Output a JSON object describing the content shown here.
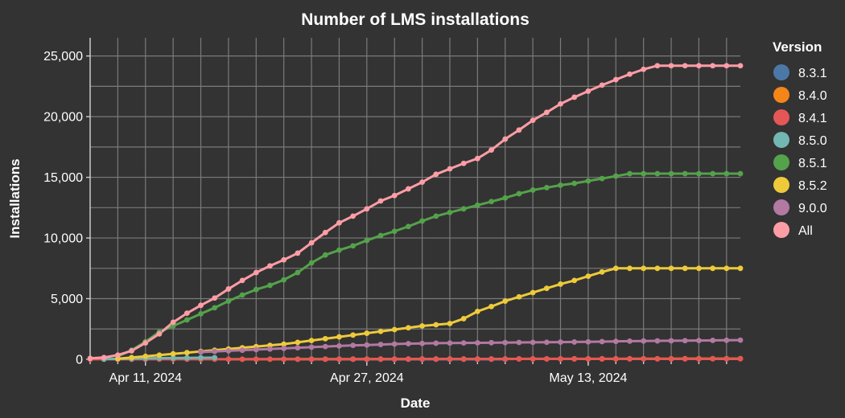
{
  "chart_data": {
    "type": "line",
    "title": "Number of LMS installations",
    "xlabel": "Date",
    "ylabel": "Installations",
    "x_start": "2024-04-07",
    "x_end": "2024-05-24",
    "ylim": [
      0,
      26500
    ],
    "x_tick_labels": [
      "Apr 11, 2024",
      "Apr 27, 2024",
      "May 13, 2024"
    ],
    "x_tick_dates": [
      "2024-04-11",
      "2024-04-27",
      "2024-05-13"
    ],
    "y_ticks": [
      0,
      5000,
      10000,
      15000,
      20000,
      25000
    ],
    "y_tick_labels": [
      "0",
      "5,000",
      "10,000",
      "15,000",
      "20,000",
      "25,000"
    ],
    "grid": true,
    "legend_title": "Version",
    "legend_position": "right",
    "series": [
      {
        "name": "8.3.1",
        "color": "#4c78a8",
        "x": [
          "2024-04-22",
          "2024-04-23",
          "2024-04-24",
          "2024-04-25",
          "2024-04-26",
          "2024-04-27",
          "2024-04-28",
          "2024-04-29",
          "2024-04-30",
          "2024-05-01",
          "2024-05-02",
          "2024-05-03",
          "2024-05-04",
          "2024-05-05",
          "2024-05-06",
          "2024-05-07"
        ],
        "y": [
          0,
          0,
          0,
          0,
          0,
          0,
          0,
          0,
          0,
          0,
          0,
          0,
          0,
          0,
          0,
          0
        ]
      },
      {
        "name": "8.4.0",
        "color": "#f58518",
        "x": [
          "2024-04-17",
          "2024-04-18",
          "2024-04-19",
          "2024-04-20",
          "2024-04-21",
          "2024-04-22",
          "2024-04-23",
          "2024-04-24",
          "2024-04-25",
          "2024-04-26",
          "2024-04-27",
          "2024-04-28",
          "2024-04-29",
          "2024-04-30",
          "2024-05-01",
          "2024-05-02",
          "2024-05-03",
          "2024-05-04",
          "2024-05-05",
          "2024-05-06",
          "2024-05-07",
          "2024-05-08",
          "2024-05-09",
          "2024-05-10",
          "2024-05-11",
          "2024-05-12",
          "2024-05-13",
          "2024-05-14",
          "2024-05-15",
          "2024-05-16",
          "2024-05-17",
          "2024-05-18",
          "2024-05-19",
          "2024-05-20",
          "2024-05-21",
          "2024-05-22",
          "2024-05-23",
          "2024-05-24"
        ],
        "y": [
          10,
          10,
          10,
          10,
          15,
          15,
          20,
          20,
          20,
          20,
          25,
          25,
          25,
          25,
          30,
          30,
          30,
          30,
          35,
          35,
          35,
          40,
          40,
          40,
          40,
          45,
          45,
          45,
          45,
          50,
          50,
          50,
          50,
          55,
          55,
          55,
          55,
          60
        ]
      },
      {
        "name": "8.4.1",
        "color": "#e45756",
        "x": [
          "2024-04-07",
          "2024-04-08",
          "2024-04-09",
          "2024-04-10",
          "2024-04-11",
          "2024-04-12",
          "2024-04-13",
          "2024-04-14",
          "2024-04-15",
          "2024-04-16",
          "2024-04-17",
          "2024-04-18",
          "2024-04-19",
          "2024-04-20",
          "2024-04-21",
          "2024-04-22",
          "2024-04-23",
          "2024-04-24",
          "2024-04-25",
          "2024-04-26",
          "2024-04-27",
          "2024-04-28",
          "2024-04-29",
          "2024-04-30",
          "2024-05-01",
          "2024-05-02",
          "2024-05-03",
          "2024-05-04",
          "2024-05-05",
          "2024-05-06",
          "2024-05-07",
          "2024-05-08",
          "2024-05-09",
          "2024-05-10",
          "2024-05-11",
          "2024-05-12",
          "2024-05-13",
          "2024-05-14",
          "2024-05-15",
          "2024-05-16",
          "2024-05-17",
          "2024-05-18",
          "2024-05-19",
          "2024-05-20",
          "2024-05-21",
          "2024-05-22",
          "2024-05-23",
          "2024-05-24"
        ],
        "y": [
          5,
          5,
          5,
          5,
          5,
          10,
          10,
          10,
          10,
          10,
          10,
          10,
          15,
          15,
          15,
          15,
          15,
          15,
          20,
          20,
          20,
          20,
          20,
          20,
          25,
          25,
          25,
          25,
          25,
          25,
          25,
          30,
          30,
          30,
          30,
          30,
          30,
          30,
          35,
          35,
          35,
          35,
          35,
          35,
          35,
          40,
          40,
          40
        ]
      },
      {
        "name": "8.5.0",
        "color": "#72b7b2",
        "x": [
          "2024-04-08",
          "2024-04-09",
          "2024-04-10",
          "2024-04-11",
          "2024-04-12",
          "2024-04-13",
          "2024-04-14",
          "2024-04-15",
          "2024-04-16"
        ],
        "y": [
          20,
          40,
          60,
          80,
          100,
          110,
          120,
          130,
          140
        ]
      },
      {
        "name": "8.5.1",
        "color": "#54a24b",
        "x": [
          "2024-04-09",
          "2024-04-10",
          "2024-04-11",
          "2024-04-12",
          "2024-04-13",
          "2024-04-14",
          "2024-04-15",
          "2024-04-16",
          "2024-04-17",
          "2024-04-18",
          "2024-04-19",
          "2024-04-20",
          "2024-04-21",
          "2024-04-22",
          "2024-04-23",
          "2024-04-24",
          "2024-04-25",
          "2024-04-26",
          "2024-04-27",
          "2024-04-28",
          "2024-04-29",
          "2024-04-30",
          "2024-05-01",
          "2024-05-02",
          "2024-05-03",
          "2024-05-04",
          "2024-05-05",
          "2024-05-06",
          "2024-05-07",
          "2024-05-08",
          "2024-05-09",
          "2024-05-10",
          "2024-05-11",
          "2024-05-12",
          "2024-05-13",
          "2024-05-14",
          "2024-05-15",
          "2024-05-16",
          "2024-05-17",
          "2024-05-18",
          "2024-05-19",
          "2024-05-20",
          "2024-05-21",
          "2024-05-22",
          "2024-05-23",
          "2024-05-24"
        ],
        "y": [
          250,
          750,
          1450,
          2250,
          2750,
          3250,
          3750,
          4250,
          4800,
          5300,
          5750,
          6100,
          6550,
          7150,
          7950,
          8600,
          9000,
          9350,
          9800,
          10200,
          10550,
          10950,
          11400,
          11800,
          12100,
          12400,
          12700,
          13000,
          13300,
          13650,
          13950,
          14150,
          14350,
          14500,
          14700,
          14900,
          15100,
          15300,
          15300,
          15300,
          15300,
          15300,
          15300,
          15300,
          15300,
          15300
        ]
      },
      {
        "name": "8.5.2",
        "color": "#eeca3b",
        "x": [
          "2024-04-09",
          "2024-04-10",
          "2024-04-11",
          "2024-04-12",
          "2024-04-13",
          "2024-04-14",
          "2024-04-15",
          "2024-04-16",
          "2024-04-17",
          "2024-04-18",
          "2024-04-19",
          "2024-04-20",
          "2024-04-21",
          "2024-04-22",
          "2024-04-23",
          "2024-04-24",
          "2024-04-25",
          "2024-04-26",
          "2024-04-27",
          "2024-04-28",
          "2024-04-29",
          "2024-04-30",
          "2024-05-01",
          "2024-05-02",
          "2024-05-03",
          "2024-05-04",
          "2024-05-05",
          "2024-05-06",
          "2024-05-07",
          "2024-05-08",
          "2024-05-09",
          "2024-05-10",
          "2024-05-11",
          "2024-05-12",
          "2024-05-13",
          "2024-05-14",
          "2024-05-15",
          "2024-05-16",
          "2024-05-17",
          "2024-05-18",
          "2024-05-19",
          "2024-05-20",
          "2024-05-21",
          "2024-05-22",
          "2024-05-23",
          "2024-05-24"
        ],
        "y": [
          50,
          150,
          250,
          350,
          450,
          550,
          650,
          750,
          850,
          950,
          1050,
          1150,
          1250,
          1400,
          1550,
          1700,
          1850,
          2000,
          2150,
          2300,
          2450,
          2600,
          2750,
          2850,
          2950,
          3350,
          3950,
          4350,
          4800,
          5150,
          5500,
          5850,
          6200,
          6500,
          6850,
          7200,
          7500,
          7500,
          7500,
          7500,
          7500,
          7500,
          7500,
          7500,
          7500,
          7500
        ]
      },
      {
        "name": "9.0.0",
        "color": "#b279a2",
        "x": [
          "2024-04-15",
          "2024-04-16",
          "2024-04-17",
          "2024-04-18",
          "2024-04-19",
          "2024-04-20",
          "2024-04-21",
          "2024-04-22",
          "2024-04-23",
          "2024-04-24",
          "2024-04-25",
          "2024-04-26",
          "2024-04-27",
          "2024-04-28",
          "2024-04-29",
          "2024-04-30",
          "2024-05-01",
          "2024-05-02",
          "2024-05-03",
          "2024-05-04",
          "2024-05-05",
          "2024-05-06",
          "2024-05-07",
          "2024-05-08",
          "2024-05-09",
          "2024-05-10",
          "2024-05-11",
          "2024-05-12",
          "2024-05-13",
          "2024-05-14",
          "2024-05-15",
          "2024-05-16",
          "2024-05-17",
          "2024-05-18",
          "2024-05-19",
          "2024-05-20",
          "2024-05-21",
          "2024-05-22",
          "2024-05-23",
          "2024-05-24"
        ],
        "y": [
          600,
          650,
          700,
          750,
          800,
          850,
          900,
          950,
          1000,
          1050,
          1100,
          1150,
          1180,
          1220,
          1260,
          1290,
          1310,
          1330,
          1340,
          1350,
          1360,
          1370,
          1380,
          1390,
          1400,
          1410,
          1420,
          1430,
          1440,
          1460,
          1480,
          1500,
          1510,
          1520,
          1530,
          1540,
          1550,
          1560,
          1570,
          1580
        ]
      },
      {
        "name": "All",
        "color": "#ff9da6",
        "x": [
          "2024-04-07",
          "2024-04-08",
          "2024-04-09",
          "2024-04-10",
          "2024-04-11",
          "2024-04-12",
          "2024-04-13",
          "2024-04-14",
          "2024-04-15",
          "2024-04-16",
          "2024-04-17",
          "2024-04-18",
          "2024-04-19",
          "2024-04-20",
          "2024-04-21",
          "2024-04-22",
          "2024-04-23",
          "2024-04-24",
          "2024-04-25",
          "2024-04-26",
          "2024-04-27",
          "2024-04-28",
          "2024-04-29",
          "2024-04-30",
          "2024-05-01",
          "2024-05-02",
          "2024-05-03",
          "2024-05-04",
          "2024-05-05",
          "2024-05-06",
          "2024-05-07",
          "2024-05-08",
          "2024-05-09",
          "2024-05-10",
          "2024-05-11",
          "2024-05-12",
          "2024-05-13",
          "2024-05-14",
          "2024-05-15",
          "2024-05-16",
          "2024-05-17",
          "2024-05-18",
          "2024-05-19",
          "2024-05-20",
          "2024-05-21",
          "2024-05-22",
          "2024-05-23",
          "2024-05-24"
        ],
        "y": [
          80,
          150,
          350,
          700,
          1350,
          2100,
          3050,
          3800,
          4450,
          5050,
          5800,
          6500,
          7150,
          7700,
          8200,
          8750,
          9600,
          10450,
          11250,
          11800,
          12400,
          13050,
          13500,
          14050,
          14600,
          15250,
          15700,
          16150,
          16550,
          17250,
          18150,
          18900,
          19700,
          20350,
          21050,
          21600,
          22100,
          22600,
          23050,
          23500,
          23900,
          24200,
          24200,
          24200,
          24200,
          24200,
          24200,
          24200
        ]
      }
    ]
  }
}
